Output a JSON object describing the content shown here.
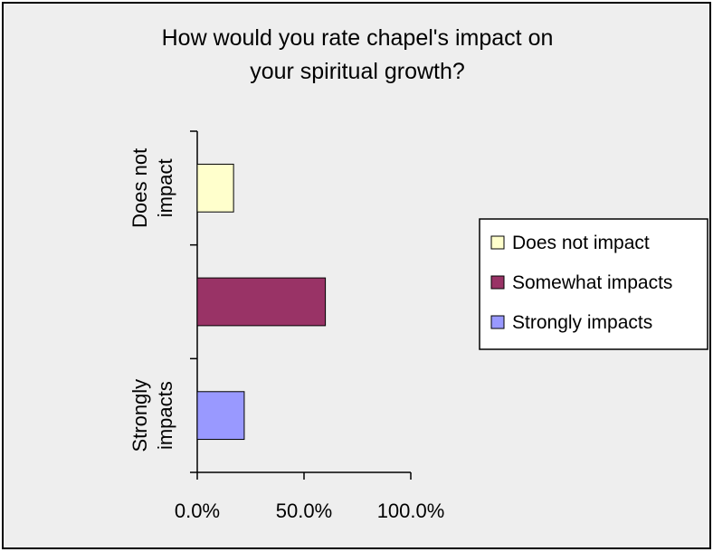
{
  "chart_data": {
    "type": "bar",
    "orientation": "horizontal",
    "title": "How would you rate chapel's impact on your spiritual growth?",
    "title_lines": [
      "How would you rate chapel's impact on",
      "your spiritual growth?"
    ],
    "categories": [
      "Does not impact",
      "Somewhat impacts",
      "Strongly impacts"
    ],
    "category_labels": [
      [
        "Does not",
        "impact"
      ],
      [],
      [
        "Strongly",
        "impacts"
      ]
    ],
    "values": [
      0.17,
      0.6,
      0.22
    ],
    "colors": [
      "#ffffcc",
      "#993366",
      "#9999ff"
    ],
    "xlim": [
      0,
      1
    ],
    "xticks": [
      0,
      0.5,
      1
    ],
    "xtick_labels": [
      "0.0%",
      "50.0%",
      "100.0%"
    ],
    "xlabel": "",
    "ylabel": "",
    "grid": false,
    "legend": {
      "position": "right",
      "entries": [
        "Does not impact",
        "Somewhat impacts",
        "Strongly impacts"
      ]
    },
    "background": "#eeeeee"
  }
}
